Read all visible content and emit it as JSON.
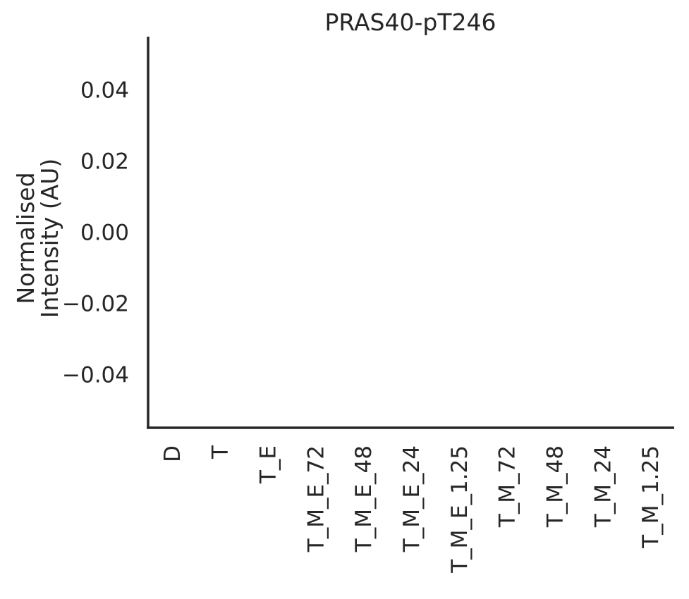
{
  "chart_data": {
    "type": "bar",
    "title": "PRAS40-pT246",
    "ylabel_lines": [
      "Normalised",
      "Intensity (AU)"
    ],
    "xlabel": "",
    "categories": [
      "D",
      "T",
      "T_E",
      "T_M_E_72",
      "T_M_E_48",
      "T_M_E_24",
      "T_M_E_1.25",
      "T_M_72",
      "T_M_48",
      "T_M_24",
      "T_M_1.25"
    ],
    "values": [
      null,
      null,
      null,
      null,
      null,
      null,
      null,
      null,
      null,
      null,
      null
    ],
    "ylim": [
      -0.055,
      0.055
    ],
    "yticks": [
      -0.04,
      -0.02,
      0.0,
      0.02,
      0.04
    ],
    "ytick_labels": [
      "−0.04",
      "−0.02",
      "0.00",
      "0.02",
      "0.04"
    ],
    "grid": false,
    "legend": "none",
    "axis_color": "#262626"
  }
}
